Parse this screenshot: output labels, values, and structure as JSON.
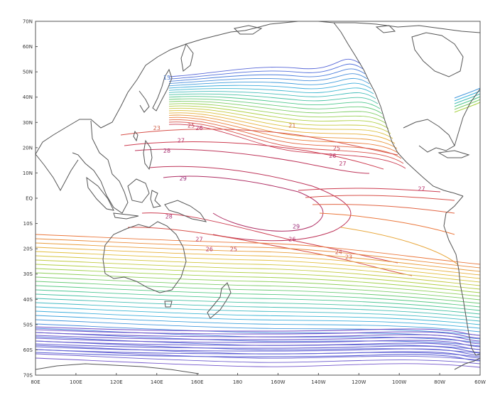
{
  "map": {
    "lat_labels": [
      "70N",
      "60N",
      "50N",
      "40N",
      "30N",
      "20N",
      "10N",
      "EQ",
      "10S",
      "20S",
      "30S",
      "40S",
      "50S",
      "60S",
      "70S"
    ],
    "lon_labels": [
      "80E",
      "100E",
      "120E",
      "140E",
      "160E",
      "180",
      "160W",
      "140W",
      "120W",
      "100W",
      "80W",
      "60W"
    ],
    "extent": {
      "lon_min_east": 80,
      "lon_max_east": 300,
      "lat_min": -70,
      "lat_max": 70
    },
    "contour_labels": [
      {
        "text": "15",
        "lon": 145,
        "lat": 47,
        "color": "#4f7fd1"
      },
      {
        "text": "23",
        "lon": 140,
        "lat": 27,
        "color": "#d0604a"
      },
      {
        "text": "25",
        "lon": 157,
        "lat": 28,
        "color": "#c04055"
      },
      {
        "text": "26",
        "lon": 161,
        "lat": 27,
        "color": "#b5306a"
      },
      {
        "text": "27",
        "lon": 152,
        "lat": 22,
        "color": "#b5306a"
      },
      {
        "text": "28",
        "lon": 145,
        "lat": 18,
        "color": "#a83070"
      },
      {
        "text": "21",
        "lon": 207,
        "lat": 28,
        "color": "#d06a3a"
      },
      {
        "text": "25",
        "lon": 229,
        "lat": 19,
        "color": "#c04055"
      },
      {
        "text": "26",
        "lon": 227,
        "lat": 16,
        "color": "#b5306a"
      },
      {
        "text": "27",
        "lon": 232,
        "lat": 13,
        "color": "#b5306a"
      },
      {
        "text": "29",
        "lon": 153,
        "lat": 7,
        "color": "#9a2a78"
      },
      {
        "text": "27",
        "lon": 271,
        "lat": 3,
        "color": "#b5306a"
      },
      {
        "text": "28",
        "lon": 146,
        "lat": -8,
        "color": "#a83070"
      },
      {
        "text": "29",
        "lon": 209,
        "lat": -12,
        "color": "#9a2a78"
      },
      {
        "text": "26",
        "lon": 207,
        "lat": -17,
        "color": "#b5306a"
      },
      {
        "text": "27",
        "lon": 161,
        "lat": -17,
        "color": "#b5306a"
      },
      {
        "text": "26",
        "lon": 166,
        "lat": -21,
        "color": "#b5306a"
      },
      {
        "text": "25",
        "lon": 178,
        "lat": -21,
        "color": "#c04055"
      },
      {
        "text": "24",
        "lon": 230,
        "lat": -22,
        "color": "#c85048"
      },
      {
        "text": "23",
        "lon": 235,
        "lat": -24,
        "color": "#d0604a"
      }
    ]
  }
}
